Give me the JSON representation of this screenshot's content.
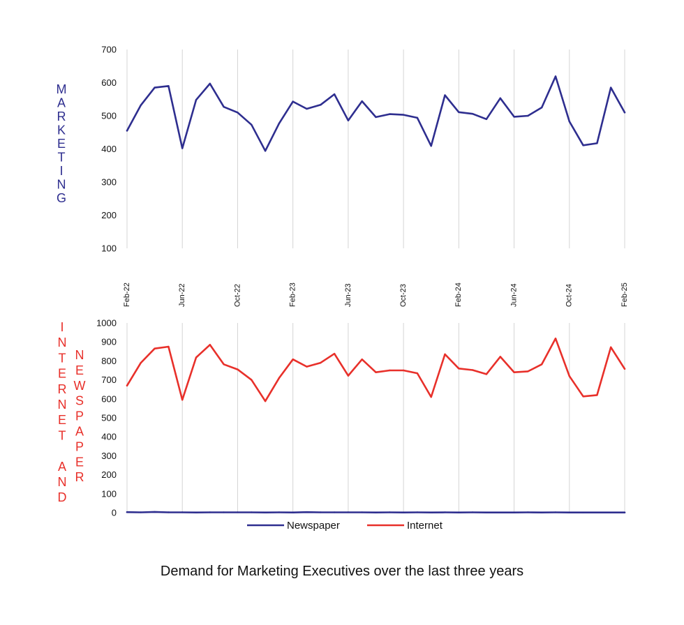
{
  "chart_data": [
    {
      "type": "line",
      "id": "top",
      "ylabel": "MARKETING",
      "ylim": [
        100,
        700
      ],
      "yticks": [
        100,
        200,
        300,
        400,
        500,
        600,
        700
      ],
      "grid": "vertical",
      "x_count": 37,
      "xtick_labels": [
        {
          "i": 0,
          "label": "Feb-22"
        },
        {
          "i": 4,
          "label": "Jun-22"
        },
        {
          "i": 8,
          "label": "Oct-22"
        },
        {
          "i": 12,
          "label": "Feb-23"
        },
        {
          "i": 16,
          "label": "Jun-23"
        },
        {
          "i": 20,
          "label": "Oct-23"
        },
        {
          "i": 24,
          "label": "Feb-24"
        },
        {
          "i": 28,
          "label": "Jun-24"
        },
        {
          "i": 32,
          "label": "Oct-24"
        },
        {
          "i": 36,
          "label": "Feb-25"
        }
      ],
      "series": [
        {
          "name": "Marketing",
          "color": "#2e2e8f",
          "values": [
            455,
            532,
            585,
            590,
            402,
            548,
            597,
            527,
            510,
            473,
            394,
            477,
            543,
            521,
            533,
            565,
            486,
            544,
            496,
            505,
            503,
            494,
            409,
            562,
            511,
            506,
            490,
            553,
            497,
            500,
            525,
            619,
            483,
            411,
            417,
            585,
            510
          ]
        }
      ]
    },
    {
      "type": "line",
      "id": "bottom",
      "ylabel": "INTERNET AND",
      "ylabel2": "NEWSPAPER",
      "ylim": [
        0,
        1000
      ],
      "yticks": [
        0,
        100,
        200,
        300,
        400,
        500,
        600,
        700,
        800,
        900,
        1000
      ],
      "grid": "vertical",
      "x_count": 37,
      "legend": "bottom",
      "series": [
        {
          "name": "Newspaper",
          "color": "#2e2e8f",
          "values": [
            3,
            2,
            4,
            2,
            2,
            1,
            2,
            2,
            2,
            2,
            1,
            2,
            1,
            3,
            2,
            2,
            2,
            2,
            1,
            2,
            1,
            2,
            1,
            2,
            1,
            2,
            1,
            1,
            1,
            2,
            1,
            2,
            1,
            1,
            1,
            1,
            1
          ]
        },
        {
          "name": "Internet",
          "color": "#e8302a",
          "values": [
            670,
            790,
            865,
            875,
            595,
            818,
            885,
            782,
            755,
            700,
            588,
            710,
            808,
            770,
            790,
            838,
            722,
            808,
            740,
            750,
            750,
            735,
            610,
            835,
            760,
            752,
            730,
            822,
            740,
            745,
            782,
            918,
            720,
            613,
            620,
            872,
            758
          ]
        }
      ]
    }
  ],
  "caption": "Demand for Marketing Executives over the last three years"
}
